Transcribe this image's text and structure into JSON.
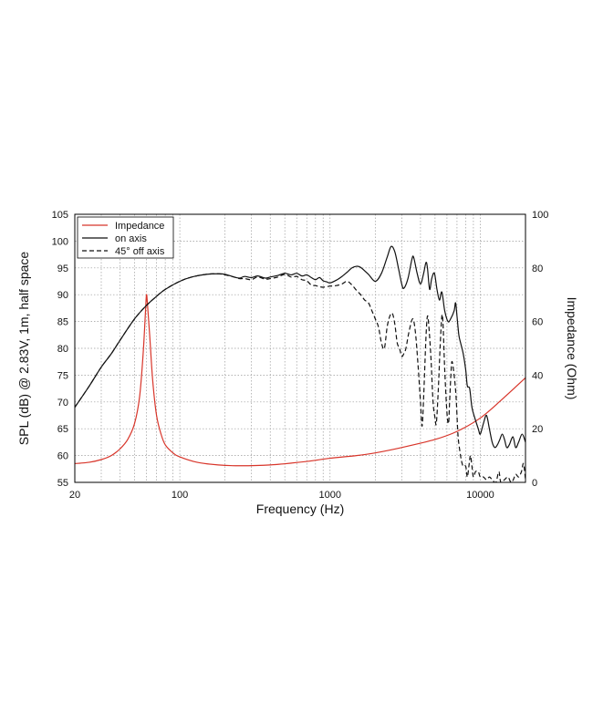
{
  "chart_data": {
    "type": "line",
    "title": "",
    "xlabel": "Frequency (Hz)",
    "ylabel_left": "SPL (dB) @ 2.83V, 1m, half space",
    "ylabel_right": "Impedance (Ohm)",
    "x_scale": "log",
    "xlim": [
      20,
      20000
    ],
    "ylim_left": [
      55,
      105
    ],
    "ylim_right": [
      0,
      100
    ],
    "x_ticks": [
      20,
      100,
      1000,
      10000
    ],
    "x_tick_labels": [
      "20",
      "100",
      "1000",
      "10000"
    ],
    "y_left_ticks": [
      55,
      60,
      65,
      70,
      75,
      80,
      85,
      90,
      95,
      100,
      105
    ],
    "y_right_ticks": [
      0,
      20,
      40,
      60,
      80,
      100
    ],
    "grid": "log-dotted",
    "legend_position": "top-left",
    "series": [
      {
        "name": "Impedance",
        "axis": "right",
        "color": "#d8352a",
        "style": "solid",
        "points": [
          [
            20,
            7
          ],
          [
            25,
            7.5
          ],
          [
            30,
            8.5
          ],
          [
            35,
            10
          ],
          [
            40,
            12.5
          ],
          [
            45,
            16
          ],
          [
            50,
            22
          ],
          [
            54,
            32
          ],
          [
            57,
            48
          ],
          [
            59,
            63
          ],
          [
            60,
            70
          ],
          [
            61,
            66
          ],
          [
            63,
            55
          ],
          [
            66,
            38
          ],
          [
            70,
            25
          ],
          [
            75,
            18
          ],
          [
            80,
            14
          ],
          [
            90,
            11
          ],
          [
            100,
            9.5
          ],
          [
            130,
            7.5
          ],
          [
            180,
            6.5
          ],
          [
            250,
            6.2
          ],
          [
            400,
            6.5
          ],
          [
            700,
            7.8
          ],
          [
            1000,
            9
          ],
          [
            1500,
            10
          ],
          [
            2000,
            11
          ],
          [
            3000,
            13
          ],
          [
            5000,
            16
          ],
          [
            7000,
            19
          ],
          [
            10000,
            24
          ],
          [
            14000,
            31
          ],
          [
            20000,
            39
          ]
        ]
      },
      {
        "name": "on axis",
        "axis": "left",
        "color": "#111111",
        "style": "solid",
        "points": [
          [
            20,
            69
          ],
          [
            25,
            73
          ],
          [
            30,
            76.5
          ],
          [
            35,
            79
          ],
          [
            40,
            81.5
          ],
          [
            50,
            85.5
          ],
          [
            60,
            88
          ],
          [
            70,
            89.7
          ],
          [
            80,
            91
          ],
          [
            100,
            92.5
          ],
          [
            120,
            93.3
          ],
          [
            150,
            93.8
          ],
          [
            180,
            93.9
          ],
          [
            200,
            93.8
          ],
          [
            230,
            93.3
          ],
          [
            250,
            93.1
          ],
          [
            270,
            93.4
          ],
          [
            300,
            93.2
          ],
          [
            330,
            93.5
          ],
          [
            370,
            93.1
          ],
          [
            400,
            93.3
          ],
          [
            450,
            93.6
          ],
          [
            500,
            94
          ],
          [
            550,
            93.7
          ],
          [
            600,
            94
          ],
          [
            650,
            93.5
          ],
          [
            700,
            93.7
          ],
          [
            750,
            93.2
          ],
          [
            800,
            92.8
          ],
          [
            850,
            93.2
          ],
          [
            900,
            92.6
          ],
          [
            950,
            92.4
          ],
          [
            1000,
            92.2
          ],
          [
            1100,
            92.7
          ],
          [
            1200,
            93.4
          ],
          [
            1300,
            94.2
          ],
          [
            1400,
            95
          ],
          [
            1500,
            95.3
          ],
          [
            1600,
            95.1
          ],
          [
            1800,
            93.8
          ],
          [
            2000,
            92.5
          ],
          [
            2200,
            94
          ],
          [
            2400,
            97
          ],
          [
            2550,
            99
          ],
          [
            2700,
            98
          ],
          [
            2850,
            95
          ],
          [
            3000,
            92
          ],
          [
            3100,
            91.2
          ],
          [
            3300,
            93
          ],
          [
            3500,
            96.5
          ],
          [
            3600,
            97
          ],
          [
            3800,
            94
          ],
          [
            4000,
            92
          ],
          [
            4200,
            94
          ],
          [
            4350,
            96
          ],
          [
            4450,
            95
          ],
          [
            4600,
            91
          ],
          [
            4750,
            93
          ],
          [
            4950,
            94
          ],
          [
            5150,
            91
          ],
          [
            5350,
            89
          ],
          [
            5550,
            90.5
          ],
          [
            5800,
            87
          ],
          [
            6100,
            85
          ],
          [
            6350,
            85.5
          ],
          [
            6700,
            87
          ],
          [
            6850,
            88.5
          ],
          [
            7000,
            86
          ],
          [
            7200,
            82.5
          ],
          [
            7400,
            81
          ],
          [
            7700,
            79
          ],
          [
            8000,
            76
          ],
          [
            8200,
            73
          ],
          [
            8500,
            72.5
          ],
          [
            8800,
            69
          ],
          [
            9200,
            67
          ],
          [
            9700,
            65
          ],
          [
            10000,
            64
          ],
          [
            10500,
            66
          ],
          [
            11000,
            67.5
          ],
          [
            11500,
            65
          ],
          [
            12000,
            62.5
          ],
          [
            12500,
            61.5
          ],
          [
            13000,
            62
          ],
          [
            13500,
            63
          ],
          [
            14000,
            64
          ],
          [
            14500,
            63
          ],
          [
            15000,
            61.5
          ],
          [
            15600,
            62
          ],
          [
            16500,
            63.5
          ],
          [
            17200,
            61.5
          ],
          [
            18000,
            62.5
          ],
          [
            19000,
            64
          ],
          [
            20000,
            62.5
          ]
        ]
      },
      {
        "name": "45° off axis",
        "axis": "left",
        "color": "#111111",
        "style": "dashed",
        "points": [
          [
            20,
            69
          ],
          [
            25,
            73
          ],
          [
            30,
            76.5
          ],
          [
            35,
            79
          ],
          [
            40,
            81.5
          ],
          [
            50,
            85.5
          ],
          [
            60,
            88
          ],
          [
            70,
            89.7
          ],
          [
            80,
            91
          ],
          [
            100,
            92.5
          ],
          [
            120,
            93.3
          ],
          [
            150,
            93.8
          ],
          [
            180,
            93.9
          ],
          [
            200,
            93.7
          ],
          [
            230,
            93.3
          ],
          [
            250,
            93
          ],
          [
            270,
            93
          ],
          [
            300,
            92.8
          ],
          [
            330,
            93.3
          ],
          [
            370,
            92.9
          ],
          [
            400,
            93
          ],
          [
            450,
            93.3
          ],
          [
            500,
            93.8
          ],
          [
            550,
            93.3
          ],
          [
            600,
            93.4
          ],
          [
            650,
            92.8
          ],
          [
            700,
            92.6
          ],
          [
            750,
            91.8
          ],
          [
            800,
            91.7
          ],
          [
            850,
            91.5
          ],
          [
            900,
            91.4
          ],
          [
            1000,
            91.6
          ],
          [
            1100,
            91.7
          ],
          [
            1200,
            92
          ],
          [
            1300,
            92.5
          ],
          [
            1400,
            91.8
          ],
          [
            1500,
            90.8
          ],
          [
            1600,
            90
          ],
          [
            1700,
            89
          ],
          [
            1800,
            88.5
          ],
          [
            1900,
            87
          ],
          [
            2000,
            85.5
          ],
          [
            2100,
            84
          ],
          [
            2200,
            81
          ],
          [
            2300,
            80
          ],
          [
            2400,
            84
          ],
          [
            2500,
            86
          ],
          [
            2600,
            86.5
          ],
          [
            2700,
            84.5
          ],
          [
            2800,
            81
          ],
          [
            2900,
            80
          ],
          [
            3000,
            78.5
          ],
          [
            3100,
            79
          ],
          [
            3200,
            80
          ],
          [
            3350,
            83
          ],
          [
            3550,
            85.5
          ],
          [
            3700,
            83
          ],
          [
            3850,
            77
          ],
          [
            4000,
            70
          ],
          [
            4100,
            65.5
          ],
          [
            4200,
            71
          ],
          [
            4350,
            82
          ],
          [
            4450,
            86
          ],
          [
            4550,
            84
          ],
          [
            4700,
            78
          ],
          [
            4850,
            70
          ],
          [
            5000,
            67
          ],
          [
            5100,
            66
          ],
          [
            5250,
            72
          ],
          [
            5400,
            80
          ],
          [
            5550,
            86
          ],
          [
            5650,
            84.5
          ],
          [
            5800,
            76
          ],
          [
            6000,
            68
          ],
          [
            6150,
            66
          ],
          [
            6250,
            70
          ],
          [
            6400,
            76
          ],
          [
            6500,
            77.5
          ],
          [
            6700,
            75
          ],
          [
            6900,
            71
          ],
          [
            7100,
            64
          ],
          [
            7300,
            61
          ],
          [
            7500,
            59
          ],
          [
            7700,
            58
          ],
          [
            8000,
            58
          ],
          [
            8200,
            56
          ],
          [
            8400,
            58
          ],
          [
            8600,
            60
          ],
          [
            8800,
            58
          ],
          [
            9000,
            56
          ],
          [
            9300,
            57
          ],
          [
            9700,
            57
          ],
          [
            10000,
            56
          ],
          [
            10500,
            56
          ],
          [
            11000,
            55.5
          ],
          [
            11500,
            56
          ],
          [
            12000,
            55.5
          ],
          [
            12700,
            55
          ],
          [
            13300,
            57
          ],
          [
            13700,
            55
          ],
          [
            14500,
            55.5
          ],
          [
            15300,
            56
          ],
          [
            16000,
            55
          ],
          [
            16600,
            55.5
          ],
          [
            17200,
            56.5
          ],
          [
            18000,
            56
          ],
          [
            18800,
            57
          ],
          [
            19400,
            58.5
          ],
          [
            20000,
            55.5
          ]
        ]
      }
    ]
  }
}
